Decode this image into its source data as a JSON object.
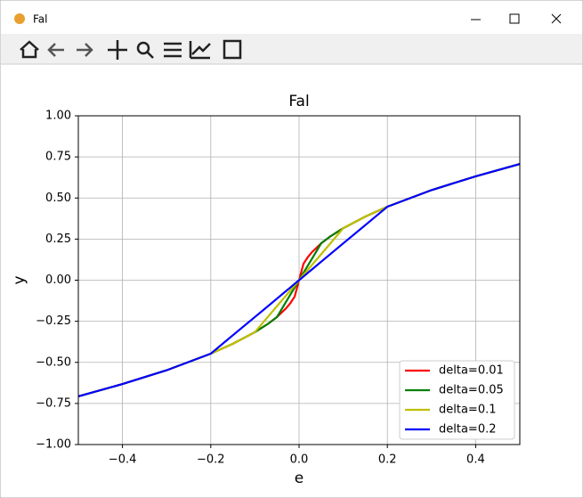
{
  "window": {
    "title": "Fal"
  },
  "chart_data": {
    "type": "line",
    "title": "Fal",
    "xlabel": "e",
    "ylabel": "y",
    "x": [
      -0.5,
      -0.4,
      -0.3,
      -0.2,
      -0.15,
      -0.1,
      -0.07,
      -0.05,
      -0.03,
      -0.02,
      -0.01,
      0,
      0.01,
      0.02,
      0.03,
      0.05,
      0.07,
      0.1,
      0.15,
      0.2,
      0.3,
      0.4,
      0.5
    ],
    "series": [
      {
        "name": "delta=0.01",
        "color": "#ff0000",
        "values": [
          -0.707,
          -0.632,
          -0.548,
          -0.447,
          -0.387,
          -0.316,
          -0.265,
          -0.224,
          -0.173,
          -0.141,
          -0.1,
          0,
          0.1,
          0.141,
          0.173,
          0.224,
          0.265,
          0.316,
          0.387,
          0.447,
          0.548,
          0.632,
          0.707
        ]
      },
      {
        "name": "delta=0.05",
        "color": "#008000",
        "values": [
          -0.707,
          -0.632,
          -0.548,
          -0.447,
          -0.387,
          -0.316,
          -0.265,
          -0.224,
          -0.134,
          -0.089,
          -0.045,
          0,
          0.045,
          0.089,
          0.134,
          0.224,
          0.265,
          0.316,
          0.387,
          0.447,
          0.548,
          0.632,
          0.707
        ]
      },
      {
        "name": "delta=0.1",
        "color": "#bfbf00",
        "values": [
          -0.707,
          -0.632,
          -0.548,
          -0.447,
          -0.387,
          -0.316,
          -0.221,
          -0.158,
          -0.095,
          -0.063,
          -0.032,
          0,
          0.032,
          0.063,
          0.095,
          0.158,
          0.221,
          0.316,
          0.387,
          0.447,
          0.548,
          0.632,
          0.707
        ]
      },
      {
        "name": "delta=0.2",
        "color": "#0000ff",
        "values": [
          -0.707,
          -0.632,
          -0.548,
          -0.447,
          -0.335,
          -0.224,
          -0.157,
          -0.112,
          -0.067,
          -0.045,
          -0.022,
          0,
          0.022,
          0.045,
          0.067,
          0.112,
          0.157,
          0.224,
          0.335,
          0.447,
          0.548,
          0.632,
          0.707
        ]
      }
    ],
    "xlim": [
      -0.5,
      0.5
    ],
    "xticks": [
      {
        "value": -0.4,
        "label": "−0.4"
      },
      {
        "value": -0.2,
        "label": "−0.2"
      },
      {
        "value": 0,
        "label": "0.0"
      },
      {
        "value": 0.2,
        "label": "0.2"
      },
      {
        "value": 0.4,
        "label": "0.4"
      }
    ],
    "ylim": [
      -1,
      1
    ],
    "yticks": [
      {
        "value": -1,
        "label": "−1.00"
      },
      {
        "value": -0.75,
        "label": "−0.75"
      },
      {
        "value": -0.5,
        "label": "−0.50"
      },
      {
        "value": -0.25,
        "label": "−0.25"
      },
      {
        "value": 0,
        "label": "0.00"
      },
      {
        "value": 0.25,
        "label": "0.25"
      },
      {
        "value": 0.5,
        "label": "0.50"
      },
      {
        "value": 0.75,
        "label": "0.75"
      },
      {
        "value": 1,
        "label": "1.00"
      }
    ],
    "grid": true,
    "legend": "lower right"
  }
}
